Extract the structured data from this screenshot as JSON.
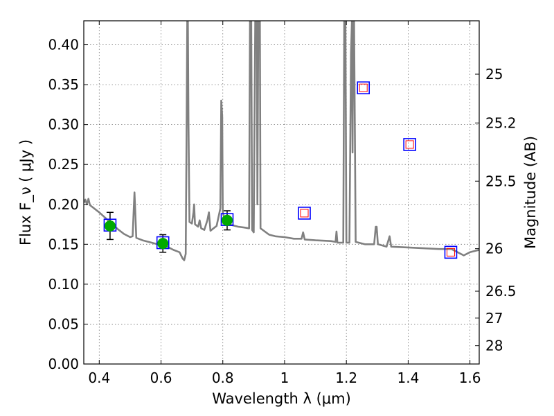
{
  "chart_data": {
    "type": "line",
    "xlabel": "Wavelength λ (μm)",
    "ylabel": "Flux F_ν ( μJy )",
    "y2label": "Magnitude (AB)",
    "xlim": [
      0.35,
      1.63
    ],
    "ylim": [
      0.0,
      0.43
    ],
    "grid": true,
    "x_ticks": [
      0.4,
      0.6,
      0.8,
      1.0,
      1.2,
      1.4,
      1.6
    ],
    "x_tick_labels": [
      "0.4",
      "0.6",
      "0.8",
      "1",
      "1.2",
      "1.4",
      "1.6"
    ],
    "y_ticks": [
      0.0,
      0.05,
      0.1,
      0.15,
      0.2,
      0.25,
      0.3,
      0.35,
      0.4
    ],
    "y_tick_labels": [
      "0.00",
      "0.05",
      "0.10",
      "0.15",
      "0.20",
      "0.25",
      "0.30",
      "0.35",
      "0.40"
    ],
    "y2_ticks": [
      {
        "label": "25",
        "flux": 0.3631
      },
      {
        "label": "25.2",
        "flux": 0.302
      },
      {
        "label": "25.5",
        "flux": 0.2291
      },
      {
        "label": "26",
        "flux": 0.1445
      },
      {
        "label": "26.5",
        "flux": 0.0912
      },
      {
        "label": "27",
        "flux": 0.0575
      },
      {
        "label": "28",
        "flux": 0.0229
      }
    ],
    "model_spectrum": {
      "color": "#808080",
      "points": [
        [
          0.35,
          0.202
        ],
        [
          0.355,
          0.206
        ],
        [
          0.36,
          0.2
        ],
        [
          0.365,
          0.207
        ],
        [
          0.37,
          0.199
        ],
        [
          0.38,
          0.196
        ],
        [
          0.4,
          0.19
        ],
        [
          0.42,
          0.183
        ],
        [
          0.44,
          0.176
        ],
        [
          0.46,
          0.169
        ],
        [
          0.48,
          0.163
        ],
        [
          0.5,
          0.159
        ],
        [
          0.508,
          0.16
        ],
        [
          0.512,
          0.197
        ],
        [
          0.514,
          0.215
        ],
        [
          0.516,
          0.196
        ],
        [
          0.52,
          0.158
        ],
        [
          0.54,
          0.155
        ],
        [
          0.56,
          0.153
        ],
        [
          0.58,
          0.151
        ],
        [
          0.6,
          0.149
        ],
        [
          0.62,
          0.147
        ],
        [
          0.64,
          0.143
        ],
        [
          0.66,
          0.14
        ],
        [
          0.67,
          0.132
        ],
        [
          0.675,
          0.13
        ],
        [
          0.68,
          0.138
        ],
        [
          0.683,
          0.3
        ],
        [
          0.685,
          0.43
        ],
        [
          0.687,
          0.43
        ],
        [
          0.689,
          0.3
        ],
        [
          0.692,
          0.178
        ],
        [
          0.7,
          0.176
        ],
        [
          0.705,
          0.19
        ],
        [
          0.707,
          0.2
        ],
        [
          0.71,
          0.175
        ],
        [
          0.72,
          0.172
        ],
        [
          0.725,
          0.18
        ],
        [
          0.73,
          0.17
        ],
        [
          0.74,
          0.168
        ],
        [
          0.75,
          0.18
        ],
        [
          0.755,
          0.19
        ],
        [
          0.76,
          0.167
        ],
        [
          0.78,
          0.173
        ],
        [
          0.792,
          0.195
        ],
        [
          0.795,
          0.33
        ],
        [
          0.798,
          0.31
        ],
        [
          0.8,
          0.19
        ],
        [
          0.81,
          0.176
        ],
        [
          0.83,
          0.174
        ],
        [
          0.85,
          0.172
        ],
        [
          0.87,
          0.171
        ],
        [
          0.885,
          0.17
        ],
        [
          0.888,
          0.43
        ],
        [
          0.892,
          0.43
        ],
        [
          0.895,
          0.168
        ],
        [
          0.9,
          0.165
        ],
        [
          0.905,
          0.43
        ],
        [
          0.91,
          0.43
        ],
        [
          0.912,
          0.2
        ],
        [
          0.915,
          0.43
        ],
        [
          0.92,
          0.43
        ],
        [
          0.922,
          0.17
        ],
        [
          0.95,
          0.162
        ],
        [
          0.97,
          0.16
        ],
        [
          1.0,
          0.159
        ],
        [
          1.03,
          0.157
        ],
        [
          1.055,
          0.157
        ],
        [
          1.06,
          0.165
        ],
        [
          1.065,
          0.156
        ],
        [
          1.1,
          0.155
        ],
        [
          1.15,
          0.154
        ],
        [
          1.165,
          0.153
        ],
        [
          1.168,
          0.166
        ],
        [
          1.171,
          0.152
        ],
        [
          1.19,
          0.152
        ],
        [
          1.193,
          0.43
        ],
        [
          1.197,
          0.43
        ],
        [
          1.2,
          0.152
        ],
        [
          1.21,
          0.152
        ],
        [
          1.215,
          0.39
        ],
        [
          1.218,
          0.43
        ],
        [
          1.22,
          0.265
        ],
        [
          1.222,
          0.43
        ],
        [
          1.225,
          0.43
        ],
        [
          1.23,
          0.153
        ],
        [
          1.26,
          0.15
        ],
        [
          1.29,
          0.15
        ],
        [
          1.295,
          0.172
        ],
        [
          1.298,
          0.172
        ],
        [
          1.302,
          0.15
        ],
        [
          1.33,
          0.147
        ],
        [
          1.34,
          0.16
        ],
        [
          1.345,
          0.147
        ],
        [
          1.4,
          0.146
        ],
        [
          1.45,
          0.145
        ],
        [
          1.5,
          0.144
        ],
        [
          1.54,
          0.144
        ],
        [
          1.56,
          0.14
        ],
        [
          1.58,
          0.136
        ],
        [
          1.6,
          0.14
        ],
        [
          1.63,
          0.143
        ]
      ]
    },
    "model_photometry": {
      "marker": "square",
      "edge_color": "#0000ff",
      "points": [
        [
          0.435,
          0.174
        ],
        [
          0.606,
          0.152
        ],
        [
          0.814,
          0.181
        ],
        [
          1.064,
          0.189
        ],
        [
          1.255,
          0.346
        ],
        [
          1.405,
          0.275
        ],
        [
          1.538,
          0.14
        ]
      ]
    },
    "upper_limits": {
      "marker": "square",
      "edge_color": "#ff0000",
      "points": [
        [
          1.064,
          0.189
        ],
        [
          1.255,
          0.346
        ],
        [
          1.405,
          0.275
        ],
        [
          1.538,
          0.14
        ]
      ]
    },
    "observed": {
      "marker": "circle",
      "color": "#00aa00",
      "points": [
        {
          "x": 0.435,
          "y": 0.173,
          "err": 0.017
        },
        {
          "x": 0.606,
          "y": 0.151,
          "err": 0.011
        },
        {
          "x": 0.814,
          "y": 0.18,
          "err": 0.012
        }
      ]
    }
  }
}
